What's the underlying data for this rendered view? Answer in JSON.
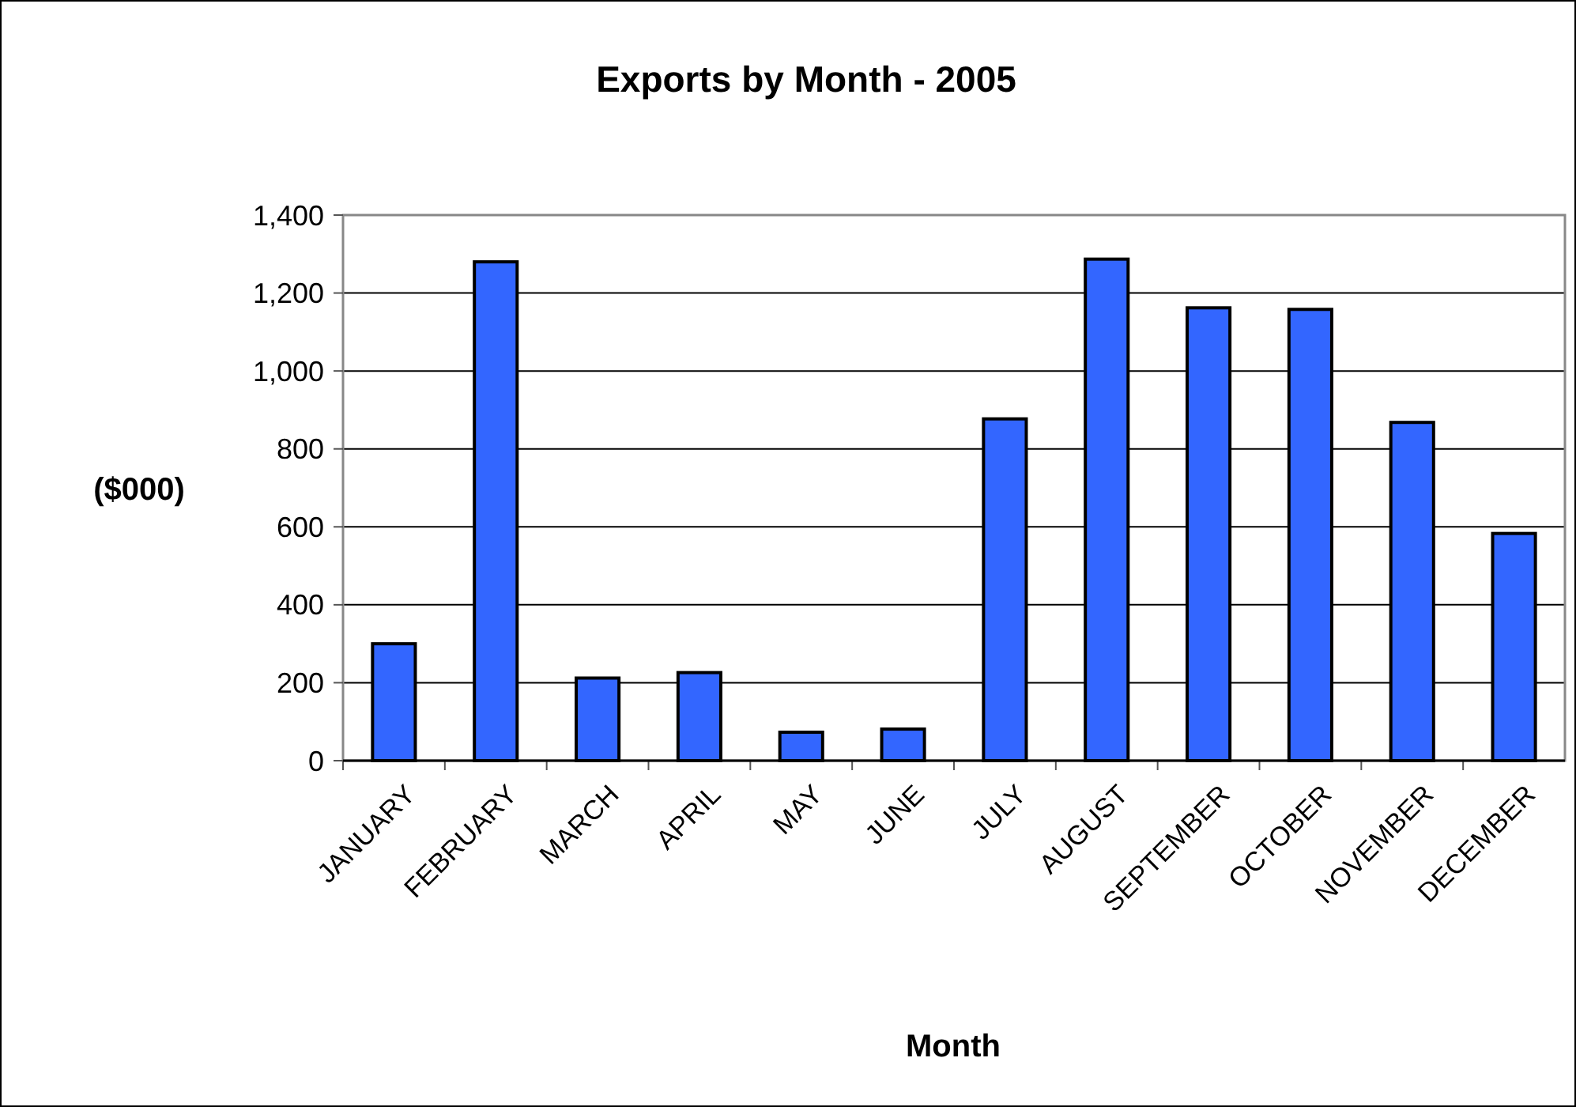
{
  "chart_data": {
    "type": "bar",
    "title": "Exports by Month - 2005",
    "xlabel": "Month",
    "ylabel": "($000)",
    "categories": [
      "JANUARY",
      "FEBRUARY",
      "MARCH",
      "APRIL",
      "MAY",
      "JUNE",
      "JULY",
      "AUGUST",
      "SEPTEMBER",
      "OCTOBER",
      "NOVEMBER",
      "DECEMBER"
    ],
    "values": [
      300,
      1280,
      212,
      226,
      73,
      81,
      877,
      1287,
      1162,
      1158,
      868,
      583
    ],
    "color": "#3366ff",
    "ylim": [
      0,
      1400
    ],
    "yticks": [
      {
        "value": 0,
        "label": "0"
      },
      {
        "value": 200,
        "label": "200"
      },
      {
        "value": 400,
        "label": "400"
      },
      {
        "value": 600,
        "label": "600"
      },
      {
        "value": 800,
        "label": "800"
      },
      {
        "value": 1000,
        "label": "1,000"
      },
      {
        "value": 1200,
        "label": "1,200"
      },
      {
        "value": 1400,
        "label": "1,400"
      }
    ],
    "grid": "y"
  }
}
